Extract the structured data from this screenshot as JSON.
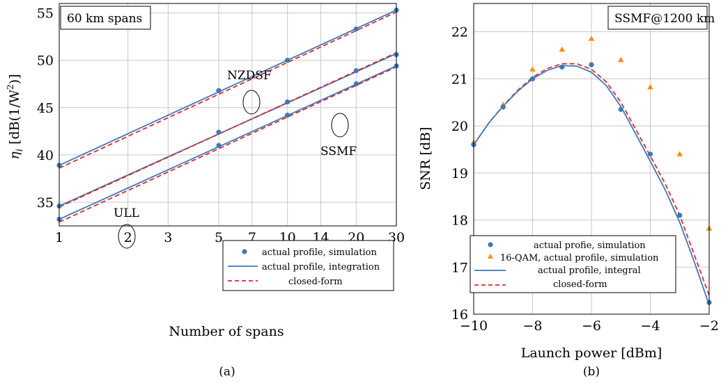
{
  "colors": {
    "blue": "#3a7ab8",
    "orange": "#ff8c00",
    "red": "#e3262d"
  },
  "chart_data": [
    {
      "type": "line",
      "panel_label": "(a)",
      "box_label": "60 km spans",
      "xlabel": "Number of spans",
      "ylabel_main": "η",
      "ylabel_sub": "i",
      "ylabel_rest": " [dB(1/W",
      "ylabel_sup": "2",
      "ylabel_end": ")]",
      "x_scale": "log",
      "xlim": [
        1,
        30
      ],
      "ylim": [
        32.5,
        56
      ],
      "xticks": [
        1,
        2,
        3,
        5,
        7,
        10,
        14,
        20,
        30
      ],
      "yticks": [
        35,
        40,
        45,
        50,
        55
      ],
      "grid": true,
      "legend_position": "bottom-right",
      "annotations": [
        "NZDSF",
        "SSMF",
        "ULL"
      ],
      "legend_entries": [
        "actual profile, simulation",
        "actual profile, integration",
        "closed-form"
      ],
      "series": [
        {
          "fiber": "NZDSF",
          "simulation_x": [
            1,
            5,
            10,
            20,
            30
          ],
          "simulation_y": [
            38.9,
            46.8,
            50.0,
            53.3,
            55.3
          ],
          "integration_endpoints": [
            [
              1,
              38.9
            ],
            [
              30,
              55.3
            ]
          ],
          "closed_form_endpoints": [
            [
              1,
              38.6
            ],
            [
              30,
              55.1
            ]
          ]
        },
        {
          "fiber": "SSMF",
          "simulation_x": [
            1,
            5,
            10,
            20,
            30
          ],
          "simulation_y": [
            34.6,
            42.4,
            45.6,
            48.9,
            50.6
          ],
          "integration_endpoints": [
            [
              1,
              34.6
            ],
            [
              30,
              50.7
            ]
          ],
          "closed_form_endpoints": [
            [
              1,
              34.5
            ],
            [
              30,
              50.8
            ]
          ]
        },
        {
          "fiber": "ULL",
          "simulation_x": [
            1,
            5,
            10,
            20,
            30
          ],
          "simulation_y": [
            33.2,
            41.0,
            44.2,
            47.5,
            49.4
          ],
          "integration_endpoints": [
            [
              1,
              33.2
            ],
            [
              30,
              49.4
            ]
          ],
          "closed_form_endpoints": [
            [
              1,
              32.9
            ],
            [
              30,
              49.3
            ]
          ]
        }
      ]
    },
    {
      "type": "line",
      "panel_label": "(b)",
      "box_label": "SSMF@1200 km",
      "xlabel": "Launch power [dBm]",
      "ylabel": "SNR [dB]",
      "xlim": [
        -10,
        -2
      ],
      "ylim": [
        16,
        22.6
      ],
      "xticks": [
        -10,
        -8,
        -6,
        -4,
        -2
      ],
      "xtick_labels": [
        "−10",
        "−8",
        "−6",
        "−4",
        "−2"
      ],
      "yticks": [
        16,
        17,
        18,
        19,
        20,
        21,
        22
      ],
      "grid": true,
      "legend_position": "bottom-left",
      "legend_entries": [
        "actual profie, simulation",
        "16-QAM, actual profile, simulation",
        "actual profile, integral",
        "closed-form"
      ],
      "simulation_x": [
        -10,
        -9,
        -8,
        -7,
        -6,
        -5,
        -4,
        -3,
        -2
      ],
      "simulation_y": [
        19.6,
        20.4,
        21.0,
        21.25,
        21.3,
        20.35,
        19.4,
        18.1,
        16.25
      ],
      "qam16_x": [
        -10,
        -9,
        -8,
        -7,
        -6,
        -5,
        -4,
        -3,
        -2
      ],
      "qam16_y": [
        19.65,
        20.45,
        21.2,
        21.62,
        21.85,
        21.4,
        20.82,
        19.4,
        17.82
      ],
      "integral_x": [
        -10,
        -9.5,
        -9,
        -8.5,
        -8,
        -7.5,
        -7,
        -6.5,
        -6,
        -5.5,
        -5,
        -4.5,
        -4,
        -3.5,
        -3,
        -2.5,
        -2
      ],
      "integral_y": [
        19.6,
        20.05,
        20.42,
        20.74,
        21.0,
        21.18,
        21.28,
        21.27,
        21.14,
        20.86,
        20.41,
        19.83,
        19.25,
        18.65,
        17.95,
        17.1,
        16.2
      ],
      "closed_form_x": [
        -10,
        -9.5,
        -9,
        -8.5,
        -8,
        -7.5,
        -7,
        -6.5,
        -6,
        -5.5,
        -5,
        -4.5,
        -4,
        -3.5,
        -3,
        -2.5,
        -2
      ],
      "closed_form_y": [
        19.6,
        20.05,
        20.43,
        20.76,
        21.03,
        21.22,
        21.32,
        21.32,
        21.2,
        20.94,
        20.5,
        19.93,
        19.36,
        18.78,
        18.1,
        17.25,
        16.4
      ]
    }
  ]
}
